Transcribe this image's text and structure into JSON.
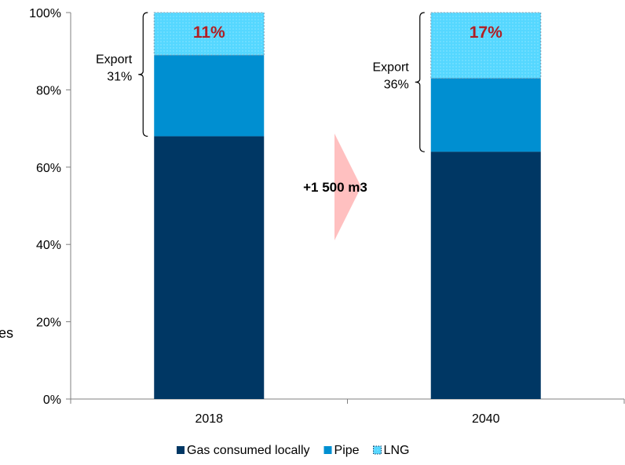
{
  "chart_data": {
    "type": "bar",
    "stacked": true,
    "categories": [
      "2018",
      "2040"
    ],
    "series": [
      {
        "name": "Gas consumed locally",
        "values": [
          68,
          64
        ],
        "color": "#003764"
      },
      {
        "name": "Pipe",
        "values": [
          21,
          19
        ],
        "color": "#008FD1"
      },
      {
        "name": "LNG",
        "values": [
          11,
          17
        ],
        "color": "#55D7FF",
        "pattern": "dotted-border"
      }
    ],
    "ylim": [
      0,
      100
    ],
    "yticks": [
      "0%",
      "20%",
      "40%",
      "60%",
      "80%",
      "100%"
    ],
    "legend_position": "bottom",
    "annotations": {
      "lng_labels": [
        "11%",
        "17%"
      ],
      "lng_label_color": "#B01E23",
      "export_brackets": [
        {
          "label": "Export",
          "value": "31%"
        },
        {
          "label": "Export",
          "value": "36%"
        }
      ],
      "arrow_text": "+1 500 m3",
      "arrow_color": "#FFC0C0"
    },
    "clipped_left_text": "es"
  }
}
